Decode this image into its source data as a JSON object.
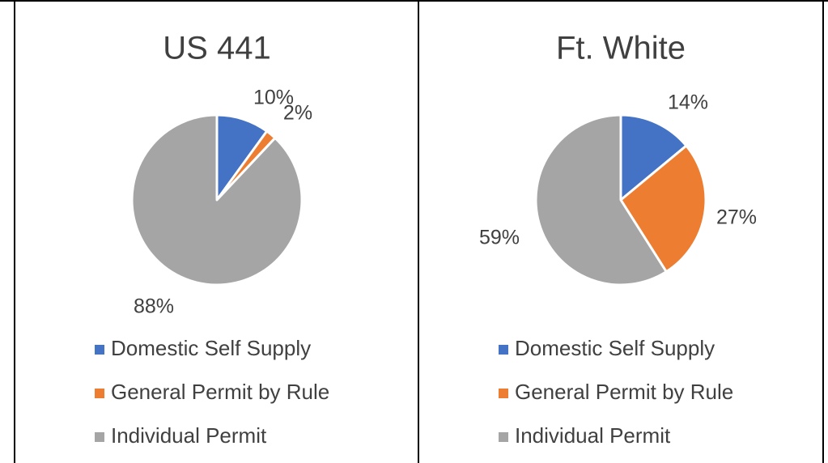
{
  "chart_data": [
    {
      "type": "pie",
      "title": "US 441",
      "categories": [
        "Domestic Self Supply",
        "General Permit by Rule",
        "Individual Permit"
      ],
      "values": [
        10,
        2,
        88
      ],
      "value_labels": [
        "10%",
        "2%",
        "88%"
      ],
      "colors": [
        "#4472c4",
        "#ed7d31",
        "#a5a5a5"
      ]
    },
    {
      "type": "pie",
      "title": "Ft. White",
      "categories": [
        "Domestic Self Supply",
        "General Permit by Rule",
        "Individual Permit"
      ],
      "values": [
        14,
        27,
        59
      ],
      "value_labels": [
        "14%",
        "27%",
        "59%"
      ],
      "colors": [
        "#4472c4",
        "#ed7d31",
        "#a5a5a5"
      ]
    }
  ]
}
